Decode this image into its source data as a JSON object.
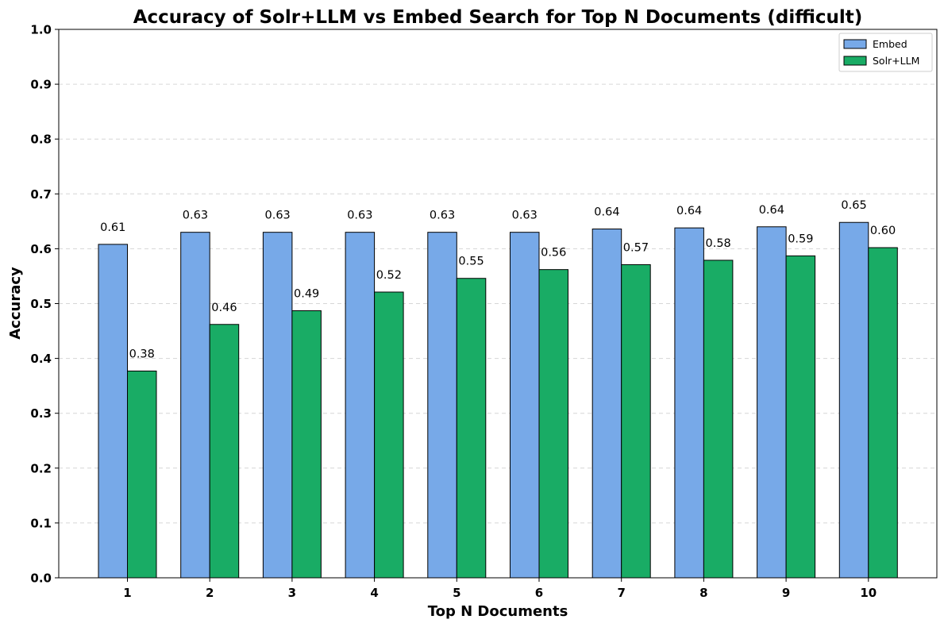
{
  "chart_data": {
    "type": "bar",
    "title": "Accuracy of Solr+LLM vs Embed Search for Top N Documents (difficult)",
    "xlabel": "Top N Documents",
    "ylabel": "Accuracy",
    "ylim": [
      0,
      1.0
    ],
    "yticks": [
      "0.0",
      "0.1",
      "0.2",
      "0.3",
      "0.4",
      "0.5",
      "0.6",
      "0.7",
      "0.8",
      "0.9",
      "1.0"
    ],
    "categories": [
      "1",
      "2",
      "3",
      "4",
      "5",
      "6",
      "7",
      "8",
      "9",
      "10"
    ],
    "grid": "y-dashed",
    "legend_position": "top-right",
    "series": [
      {
        "name": "Embed",
        "color": "#77a9e8",
        "values": [
          0.608,
          0.63,
          0.63,
          0.63,
          0.63,
          0.63,
          0.636,
          0.638,
          0.64,
          0.648
        ],
        "labels": [
          "0.61",
          "0.63",
          "0.63",
          "0.63",
          "0.63",
          "0.63",
          "0.64",
          "0.64",
          "0.64",
          "0.65"
        ]
      },
      {
        "name": "Solr+LLM",
        "color": "#19ac65",
        "values": [
          0.377,
          0.462,
          0.487,
          0.521,
          0.546,
          0.562,
          0.571,
          0.579,
          0.587,
          0.602
        ],
        "labels": [
          "0.38",
          "0.46",
          "0.49",
          "0.52",
          "0.55",
          "0.56",
          "0.57",
          "0.58",
          "0.59",
          "0.60"
        ]
      }
    ]
  }
}
